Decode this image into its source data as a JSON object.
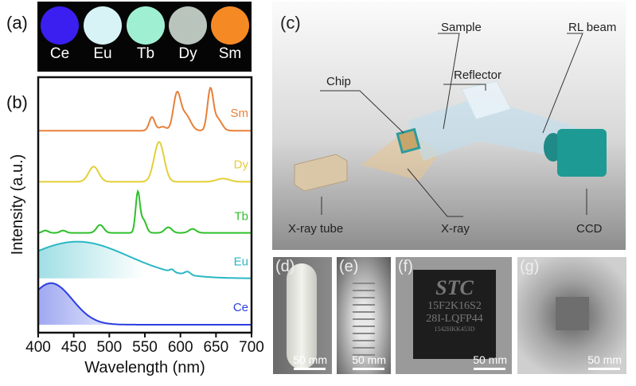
{
  "panels": {
    "a": "(a)",
    "b": "(b)",
    "c": "(c)",
    "d": "(d)",
    "e": "(e)",
    "f": "(f)",
    "g": "(g)"
  },
  "panel_a": {
    "samples": [
      {
        "label": "Ce",
        "color": "#3a1ff0"
      },
      {
        "label": "Eu",
        "color": "#d8f3f6"
      },
      {
        "label": "Tb",
        "color": "#9ff0d2"
      },
      {
        "label": "Dy",
        "color": "#b8c4bc"
      },
      {
        "label": "Sm",
        "color": "#f58a25"
      }
    ]
  },
  "chart_data": {
    "type": "line",
    "xlabel": "Wavelength (nm)",
    "ylabel": "Intensity (a.u.)",
    "xlim": [
      400,
      700
    ],
    "ylim": [
      0,
      32
    ],
    "xticks": [
      400,
      450,
      500,
      550,
      600,
      650,
      700
    ],
    "series": [
      {
        "name": "Sm",
        "color": "#e8803a",
        "baseline": 25.3,
        "label_y": 27,
        "fill": false,
        "peaks": [
          [
            560,
            1.7,
            4
          ],
          [
            575,
            0.5,
            5
          ],
          [
            595,
            4.4,
            5
          ],
          [
            607,
            2.0,
            7
          ],
          [
            642,
            5.0,
            4
          ],
          [
            652,
            1.5,
            6
          ]
        ]
      },
      {
        "name": "Dy",
        "color": "#e3cf3a",
        "baseline": 18.9,
        "label_y": 20.6,
        "fill": false,
        "peaks": [
          [
            478,
            1.9,
            7
          ],
          [
            570,
            5.0,
            7
          ],
          [
            660,
            0.4,
            9
          ]
        ]
      },
      {
        "name": "Tb",
        "color": "#2ec02a",
        "baseline": 12.5,
        "label_y": 14.1,
        "fill": false,
        "peaks": [
          [
            410,
            0.3,
            4
          ],
          [
            435,
            0.3,
            4
          ],
          [
            487,
            1.0,
            5
          ],
          [
            540,
            5.0,
            3
          ],
          [
            548,
            1.6,
            4
          ],
          [
            583,
            0.7,
            5
          ],
          [
            617,
            0.5,
            5
          ]
        ]
      },
      {
        "name": "Eu",
        "color": "#2bb7c4",
        "baseline": 6.8,
        "label_y": 8.4,
        "fill": true,
        "peaks": [
          [
            455,
            4.6,
            72
          ],
          [
            588,
            0.3,
            3
          ],
          [
            610,
            0.4,
            4
          ]
        ]
      },
      {
        "name": "Ce",
        "color": "#2a3ee0",
        "baseline": 1.0,
        "label_y": 2.7,
        "fill": true,
        "peaks": [
          [
            418,
            5.2,
            30
          ]
        ]
      }
    ]
  },
  "panel_c": {
    "labels": {
      "sample": "Sample",
      "rl_beam": "RL beam",
      "chip": "Chip",
      "reflector": "Reflector",
      "xray_tube": "X-ray tube",
      "xray": "X-ray",
      "ccd": "CCD"
    }
  },
  "photos": {
    "scale": "50 mm",
    "chip_text": [
      "STC",
      "15F2K16S2",
      "28I-LQFP44",
      "1542HKK453D"
    ]
  }
}
